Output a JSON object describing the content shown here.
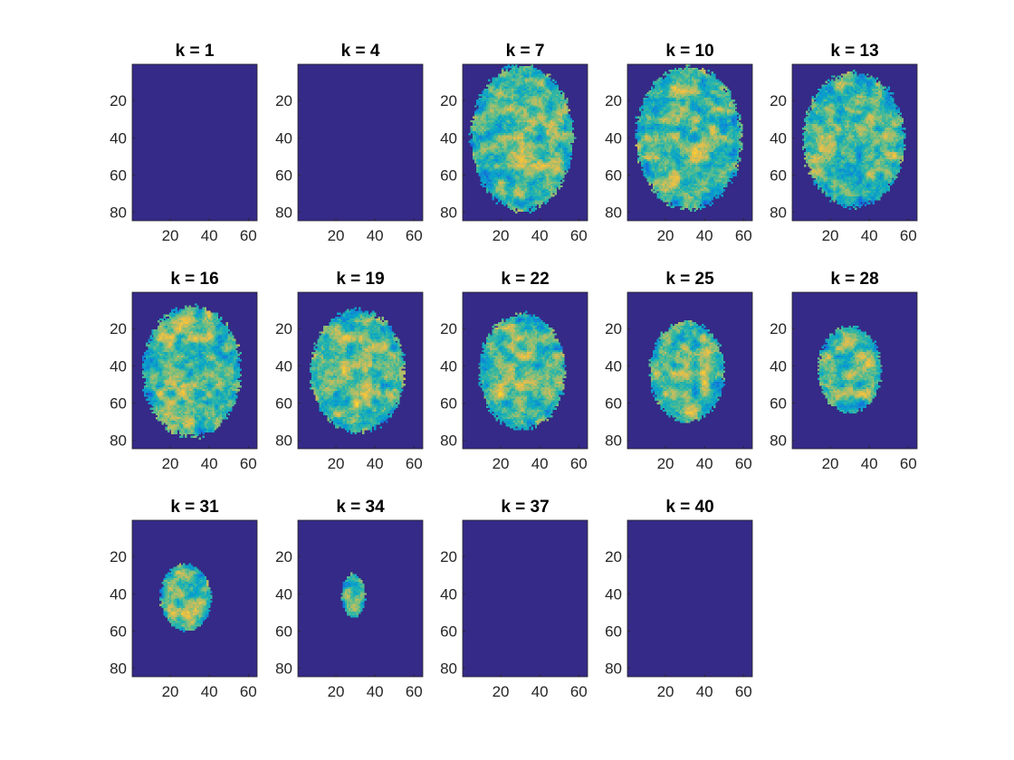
{
  "chart_data": {
    "type": "heatmap",
    "colormap": "parula",
    "colors": {
      "background": "#352a87",
      "colormap_stops": [
        "#352a87",
        "#0f5cdd",
        "#1481d6",
        "#06a4ca",
        "#2eb7a4",
        "#87bf77",
        "#d1bb59",
        "#fec832",
        "#f9fb0e"
      ]
    },
    "x_ticks": [
      "20",
      "40",
      "60"
    ],
    "y_ticks": [
      "20",
      "40",
      "60",
      "80"
    ],
    "xlim": [
      0.5,
      64.5
    ],
    "ylim": [
      0.5,
      84.5
    ],
    "y_direction": "reverse",
    "panels": [
      {
        "title": "k = 1",
        "slice": 1,
        "brain": null
      },
      {
        "title": "k = 4",
        "slice": 4,
        "brain": null
      },
      {
        "title": "k = 7",
        "slice": 7,
        "brain": {
          "cx": 31,
          "cy": 40,
          "rx": 26,
          "ry": 39
        }
      },
      {
        "title": "k = 10",
        "slice": 10,
        "brain": {
          "cx": 32,
          "cy": 40,
          "rx": 27,
          "ry": 38
        }
      },
      {
        "title": "k = 13",
        "slice": 13,
        "brain": {
          "cx": 32,
          "cy": 41,
          "rx": 26,
          "ry": 36
        }
      },
      {
        "title": "k = 16",
        "slice": 16,
        "brain": {
          "cx": 31,
          "cy": 43,
          "rx": 25,
          "ry": 35
        }
      },
      {
        "title": "k = 19",
        "slice": 19,
        "brain": {
          "cx": 31,
          "cy": 43,
          "rx": 24,
          "ry": 33
        }
      },
      {
        "title": "k = 22",
        "slice": 22,
        "brain": {
          "cx": 31,
          "cy": 43,
          "rx": 22,
          "ry": 31
        }
      },
      {
        "title": "k = 25",
        "slice": 25,
        "brain": {
          "cx": 31,
          "cy": 43,
          "rx": 19,
          "ry": 27
        }
      },
      {
        "title": "k = 28",
        "slice": 28,
        "brain": {
          "cx": 30,
          "cy": 42,
          "rx": 16,
          "ry": 23
        }
      },
      {
        "title": "k = 31",
        "slice": 31,
        "brain": {
          "cx": 28,
          "cy": 42,
          "rx": 13,
          "ry": 18
        }
      },
      {
        "title": "k = 34",
        "slice": 34,
        "brain": {
          "cx": 29,
          "cy": 41,
          "rx": 6,
          "ry": 12
        }
      },
      {
        "title": "k = 37",
        "slice": 37,
        "brain": null
      },
      {
        "title": "k = 40",
        "slice": 40,
        "brain": null
      }
    ]
  }
}
